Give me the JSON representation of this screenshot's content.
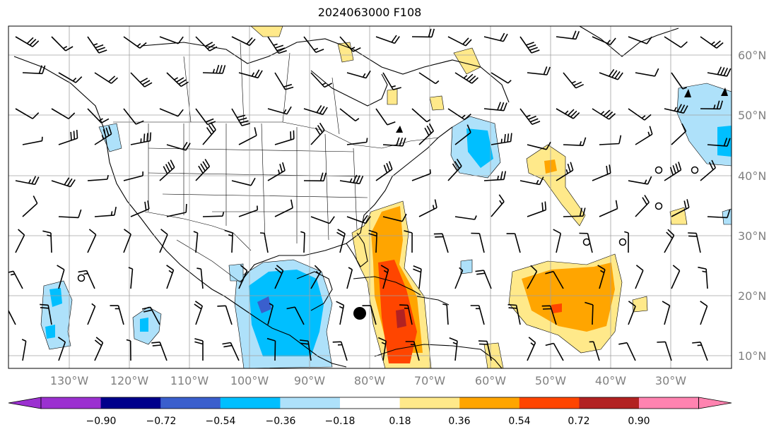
{
  "title": "2024063000 F108",
  "lon_labels": [
    "130°W",
    "120°W",
    "110°W",
    "100°W",
    "90°W",
    "80°W",
    "70°W",
    "60°W",
    "50°W",
    "40°W",
    "30°W"
  ],
  "lat_labels": [
    "60°N",
    "50°N",
    "40°N",
    "30°N",
    "20°N",
    "10°N"
  ],
  "colorbar": {
    "ticks": [
      "−0.90",
      "−0.72",
      "−0.54",
      "−0.36",
      "−0.18",
      "0.18",
      "0.36",
      "0.54",
      "0.72",
      "0.90"
    ],
    "colors": [
      "#9b30d0",
      "#00008b",
      "#3a5fcd",
      "#00bfff",
      "#aee1fa",
      "#ffffff",
      "#ffe98a",
      "#ffa500",
      "#ff4500",
      "#b22222",
      "#ff83b0"
    ]
  },
  "colors": {
    "light_blue": "#aee1fa",
    "blue": "#00bfff",
    "mid_blue": "#3a5fcd",
    "yellow": "#ffe98a",
    "orange": "#ffa500",
    "red_orange": "#ff4500",
    "dark_red": "#b22222"
  }
}
